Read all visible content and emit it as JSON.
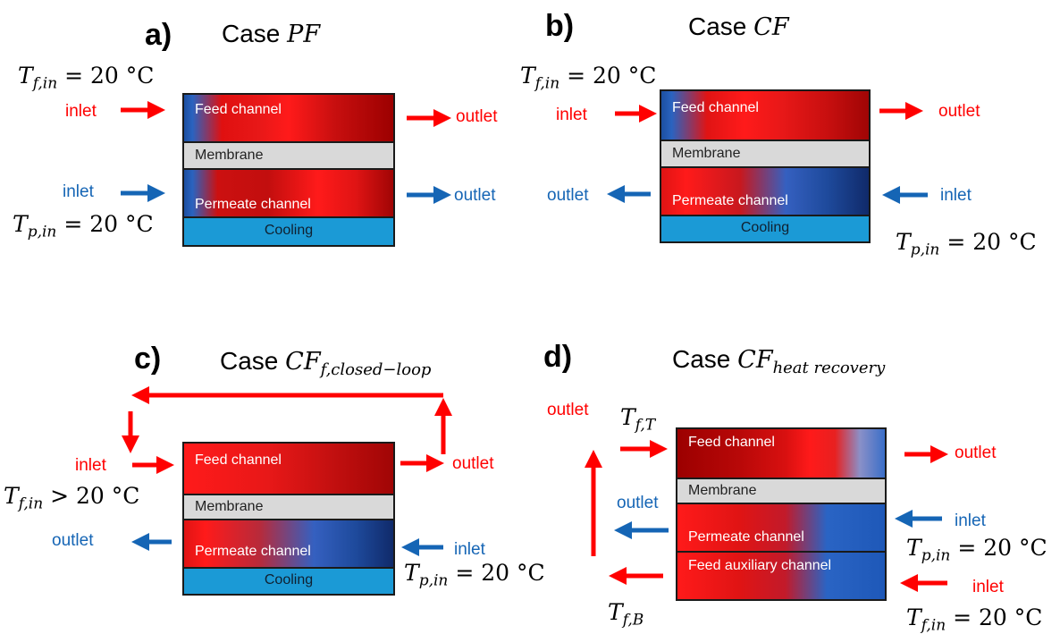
{
  "panels": [
    {
      "label": "a)",
      "case_prefix": "Case",
      "case_main": "PF",
      "case_sub": "",
      "layers": {
        "feed": "Feed channel",
        "membrane": "Membrane",
        "permeate": "Permeate channel",
        "cooling": "Cooling"
      },
      "feed_inlet": "inlet",
      "feed_outlet": "outlet",
      "perm_inlet": "inlet",
      "perm_outlet": "outlet",
      "t_feed": {
        "var": "T",
        "sub": "f,in",
        "rel": "= 20 °C"
      },
      "t_perm": {
        "var": "T",
        "sub": "p,in",
        "rel": "= 20 °C"
      }
    },
    {
      "label": "b)",
      "case_prefix": "Case",
      "case_main": "CF",
      "case_sub": "",
      "layers": {
        "feed": "Feed channel",
        "membrane": "Membrane",
        "permeate": "Permeate channel",
        "cooling": "Cooling"
      },
      "feed_inlet": "inlet",
      "feed_outlet": "outlet",
      "perm_inlet": "inlet",
      "perm_outlet": "outlet",
      "t_feed": {
        "var": "T",
        "sub": "f,in",
        "rel": "= 20 °C"
      },
      "t_perm": {
        "var": "T",
        "sub": "p,in",
        "rel": "= 20 °C"
      }
    },
    {
      "label": "c)",
      "case_prefix": "Case",
      "case_main": "CF",
      "case_sub": "f,closed−loop",
      "layers": {
        "feed": "Feed channel",
        "membrane": "Membrane",
        "permeate": "Permeate channel",
        "cooling": "Cooling"
      },
      "feed_inlet": "inlet",
      "feed_outlet": "outlet",
      "perm_inlet": "inlet",
      "perm_outlet": "outlet",
      "t_feed": {
        "var": "T",
        "sub": "f,in",
        "rel": "> 20 °C"
      },
      "t_perm": {
        "var": "T",
        "sub": "p,in",
        "rel": "= 20 °C"
      }
    },
    {
      "label": "d)",
      "case_prefix": "Case",
      "case_main": "CF",
      "case_sub": "heat recovery",
      "layers": {
        "feed": "Feed channel",
        "membrane": "Membrane",
        "permeate": "Permeate channel",
        "aux": "Feed auxiliary channel"
      },
      "left_outlet": "outlet",
      "feed_outlet": "outlet",
      "perm_outlet": "outlet",
      "perm_inlet": "inlet",
      "aux_inlet": "inlet",
      "t_top": {
        "var": "T",
        "sub": "f,T"
      },
      "t_bottom": {
        "var": "T",
        "sub": "f,B"
      },
      "t_perm": {
        "var": "T",
        "sub": "p,in",
        "rel": "= 20 °C"
      },
      "t_feed": {
        "var": "T",
        "sub": "f,in",
        "rel": "= 20 °C"
      }
    }
  ],
  "colors": {
    "hot": "#ff0000",
    "cold": "#1565b5",
    "cooling": "#1b9ad6",
    "membrane": "#d9d9d9"
  }
}
